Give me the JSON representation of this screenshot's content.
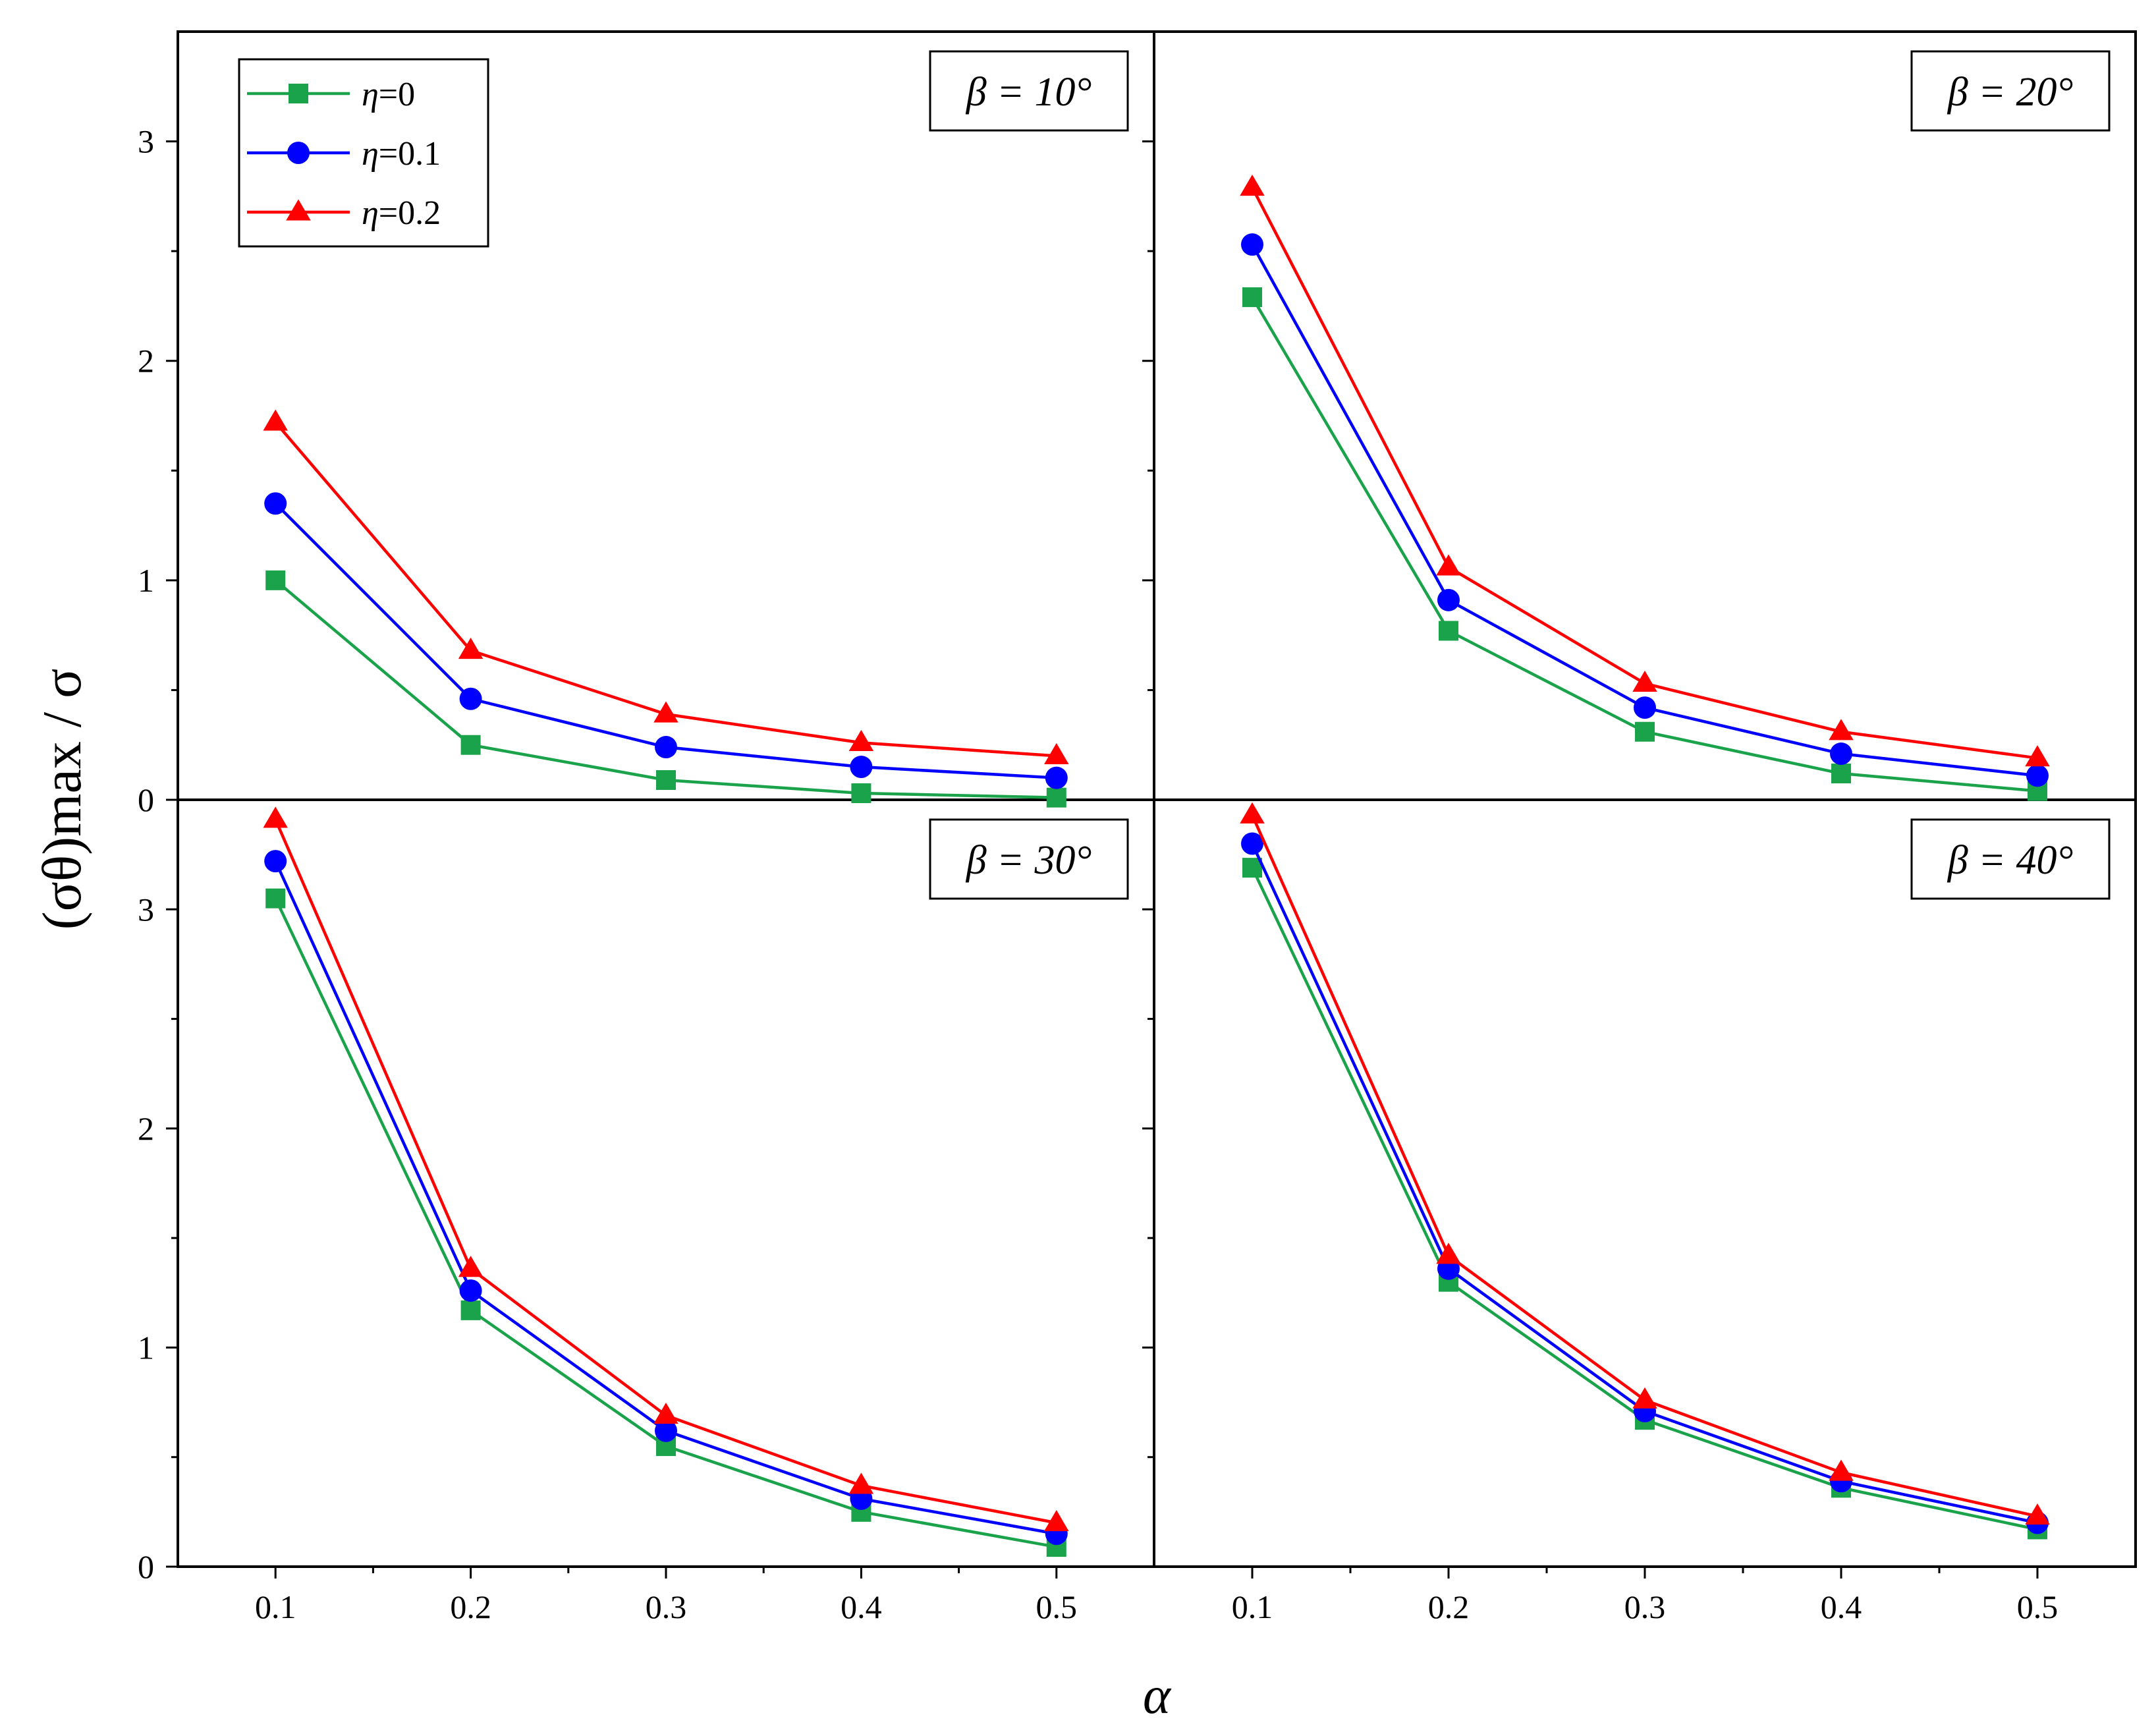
{
  "chart_data": {
    "type": "line",
    "layout": "2x2 panels, shared axes",
    "xlabel": "α",
    "ylabel": "(σθ)max / σ",
    "x": [
      0.1,
      0.2,
      0.3,
      0.4,
      0.5
    ],
    "x_ticks": [
      "0.1",
      "0.2",
      "0.3",
      "0.4",
      "0.5"
    ],
    "xlim": [
      0.05,
      0.55
    ],
    "ylim": [
      0,
      3.5
    ],
    "y_ticks": [
      "0",
      "1",
      "2",
      "3"
    ],
    "legend": {
      "placement": "top-left of first panel",
      "entries": [
        {
          "name": "η=0",
          "symbol": "η",
          "value": "=0",
          "color": "#1aa34a",
          "marker": "square"
        },
        {
          "name": "η=0.1",
          "symbol": "η",
          "value": "=0.1",
          "color": "#0000ff",
          "marker": "circle"
        },
        {
          "name": "η=0.2",
          "symbol": "η",
          "value": "=0.2",
          "color": "#ff0000",
          "marker": "triangle"
        }
      ]
    },
    "panels": [
      {
        "label": "β = 10°",
        "series": [
          {
            "name": "η=0",
            "values": [
              1.0,
              0.25,
              0.09,
              0.03,
              0.01
            ]
          },
          {
            "name": "η=0.1",
            "values": [
              1.35,
              0.46,
              0.24,
              0.15,
              0.1
            ]
          },
          {
            "name": "η=0.2",
            "values": [
              1.72,
              0.68,
              0.39,
              0.26,
              0.2
            ]
          }
        ]
      },
      {
        "label": "β = 20°",
        "series": [
          {
            "name": "η=0",
            "values": [
              2.29,
              0.77,
              0.31,
              0.12,
              0.04
            ]
          },
          {
            "name": "η=0.1",
            "values": [
              2.53,
              0.91,
              0.42,
              0.21,
              0.11
            ]
          },
          {
            "name": "η=0.2",
            "values": [
              2.79,
              1.06,
              0.53,
              0.31,
              0.19
            ]
          }
        ]
      },
      {
        "label": "β = 30°",
        "series": [
          {
            "name": "η=0",
            "values": [
              3.05,
              1.17,
              0.55,
              0.25,
              0.09
            ]
          },
          {
            "name": "η=0.1",
            "values": [
              3.22,
              1.26,
              0.62,
              0.31,
              0.15
            ]
          },
          {
            "name": "η=0.2",
            "values": [
              3.41,
              1.36,
              0.69,
              0.37,
              0.2
            ]
          }
        ]
      },
      {
        "label": "β = 40°",
        "series": [
          {
            "name": "η=0",
            "values": [
              3.19,
              1.3,
              0.67,
              0.36,
              0.17
            ]
          },
          {
            "name": "η=0.1",
            "values": [
              3.3,
              1.36,
              0.71,
              0.39,
              0.2
            ]
          },
          {
            "name": "η=0.2",
            "values": [
              3.43,
              1.42,
              0.76,
              0.43,
              0.23
            ]
          }
        ]
      }
    ]
  }
}
